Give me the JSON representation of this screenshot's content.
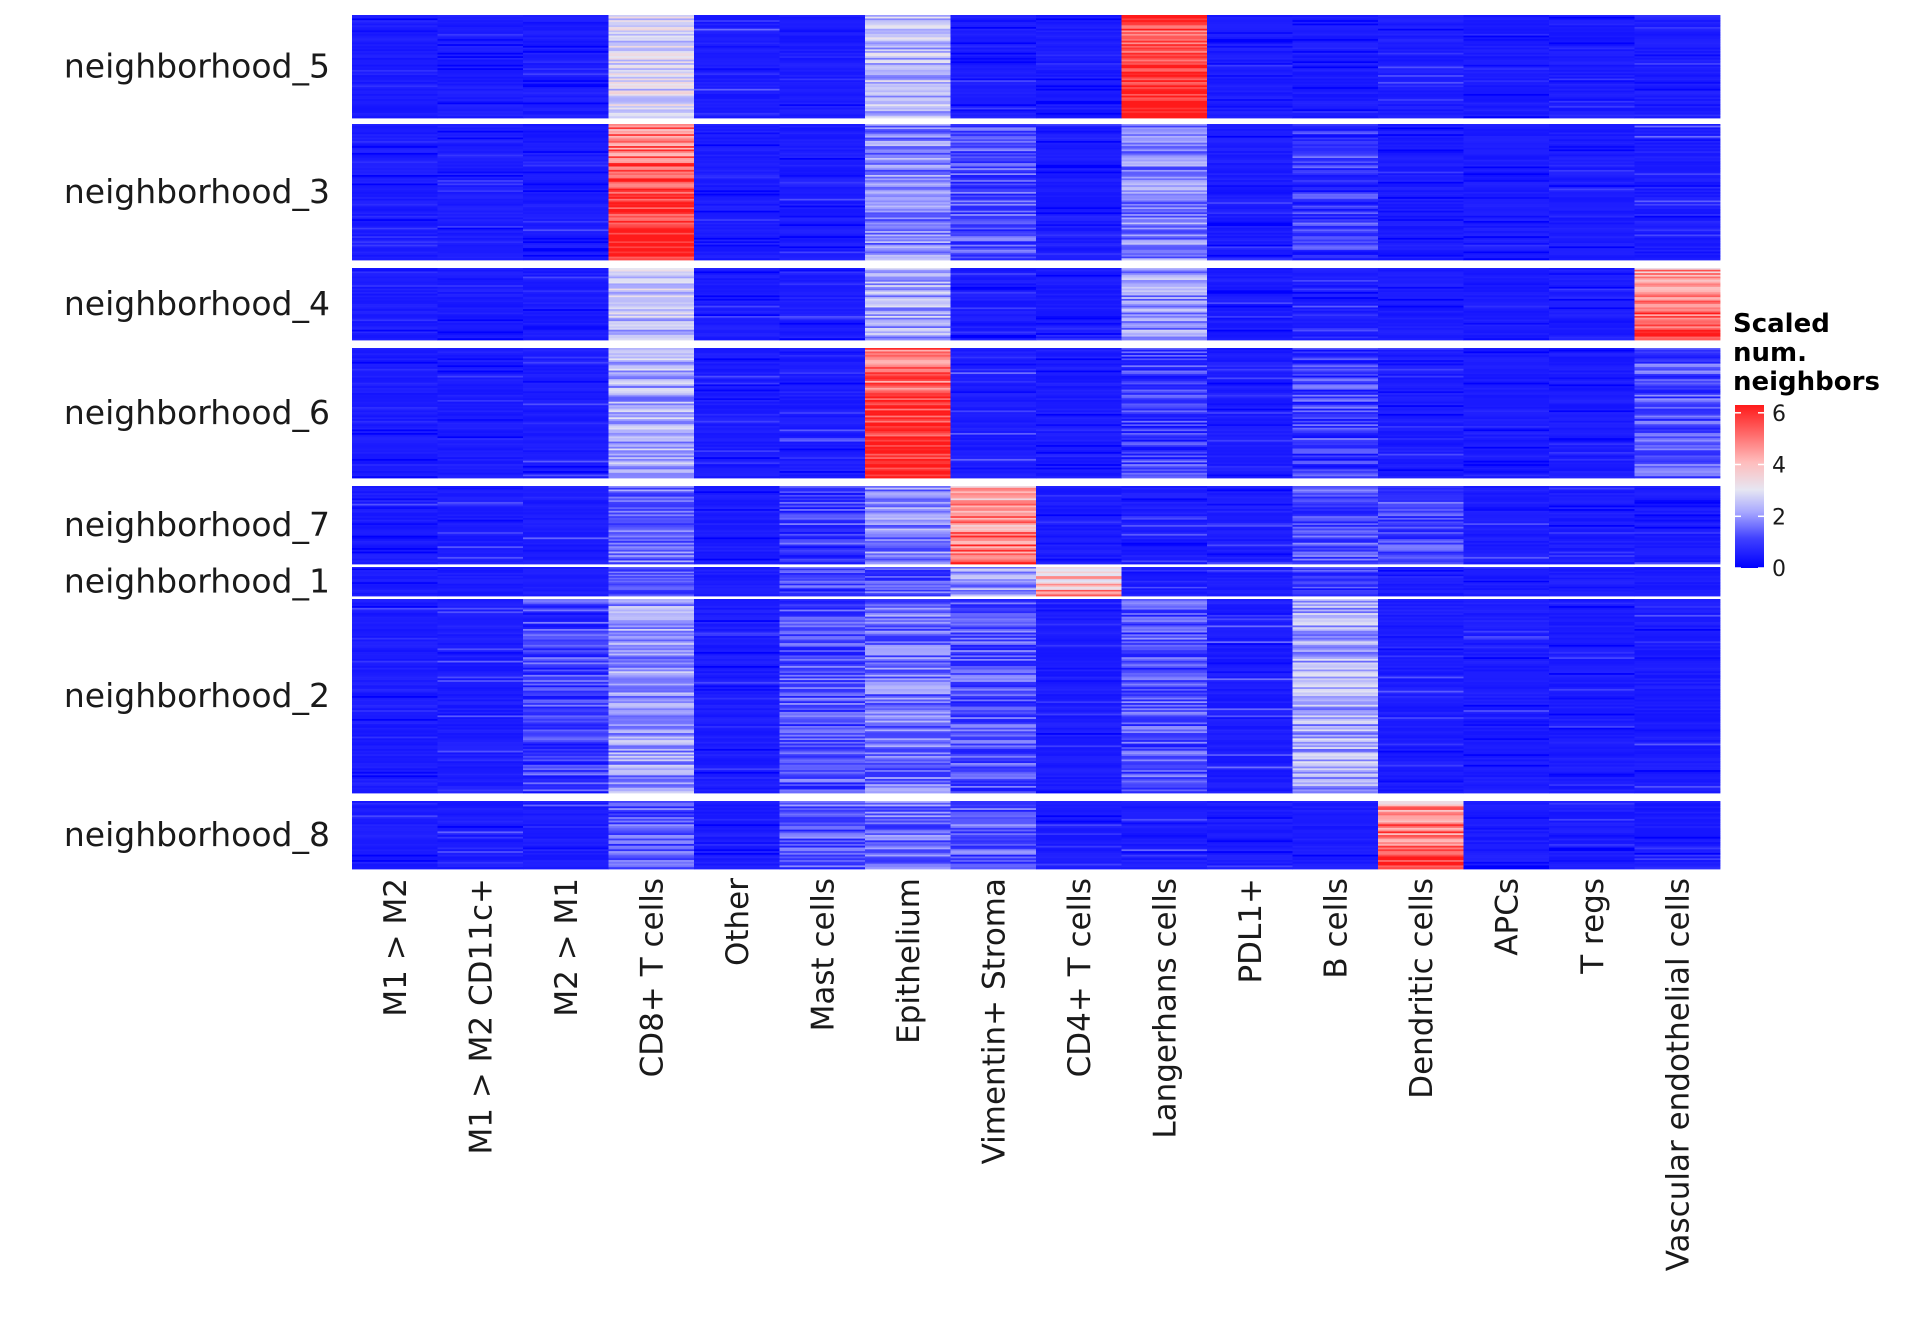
{
  "chart_data": {
    "type": "heatmap",
    "title": "",
    "xlabel": "",
    "ylabel": "",
    "columns": [
      "M1 > M2",
      "M1 > M2 CD11c+",
      "M2 > M1",
      "CD8+ T cells",
      "Other",
      "Mast cells",
      "Epithelium",
      "Vimentin+ Stroma",
      "CD4+ T cells",
      "Langerhans cells",
      "PDL1+",
      "B cells",
      "Dendritic cells",
      "APCs",
      "T regs",
      "Vascular endothelial cells"
    ],
    "row_groups": [
      {
        "name": "neighborhood_5",
        "n_rows": 60,
        "mean": [
          0.4,
          0.3,
          0.4,
          2.8,
          0.8,
          0.5,
          2.4,
          0.5,
          0.3,
          5.8,
          0.4,
          0.4,
          0.6,
          0.3,
          0.3,
          0.8
        ]
      },
      {
        "name": "neighborhood_3",
        "n_rows": 80,
        "mean": [
          0.3,
          0.5,
          0.6,
          5.5,
          0.4,
          0.5,
          1.8,
          1.2,
          0.4,
          1.8,
          0.4,
          1.0,
          0.3,
          0.3,
          0.4,
          0.8
        ]
      },
      {
        "name": "neighborhood_4",
        "n_rows": 42,
        "mean": [
          0.3,
          0.4,
          0.4,
          2.5,
          0.5,
          0.5,
          2.2,
          0.6,
          0.3,
          2.0,
          0.5,
          0.7,
          0.3,
          0.3,
          0.3,
          5.0
        ]
      },
      {
        "name": "neighborhood_6",
        "n_rows": 75,
        "mean": [
          0.3,
          0.4,
          0.6,
          2.2,
          0.5,
          0.7,
          5.5,
          0.9,
          0.3,
          1.0,
          0.5,
          1.0,
          0.5,
          0.3,
          0.3,
          1.2
        ]
      },
      {
        "name": "neighborhood_7",
        "n_rows": 44,
        "mean": [
          0.5,
          0.8,
          0.8,
          1.5,
          0.3,
          1.0,
          1.8,
          4.6,
          0.4,
          0.8,
          0.6,
          1.2,
          1.2,
          0.8,
          0.3,
          0.5
        ]
      },
      {
        "name": "neighborhood_1",
        "n_rows": 19,
        "mean": [
          0.5,
          0.6,
          0.7,
          1.5,
          0.3,
          1.1,
          1.3,
          2.0,
          3.8,
          0.6,
          0.6,
          1.0,
          0.6,
          0.6,
          0.3,
          0.4
        ]
      },
      {
        "name": "neighborhood_2",
        "n_rows": 110,
        "mean": [
          0.6,
          0.7,
          1.0,
          2.0,
          0.5,
          1.2,
          1.6,
          1.2,
          0.5,
          1.2,
          0.8,
          2.2,
          0.8,
          0.6,
          0.5,
          0.6
        ]
      },
      {
        "name": "neighborhood_8",
        "n_rows": 38,
        "mean": [
          0.6,
          0.7,
          0.9,
          1.2,
          0.5,
          1.3,
          1.5,
          1.3,
          0.4,
          0.8,
          0.7,
          0.4,
          5.0,
          0.4,
          0.6,
          0.5
        ]
      }
    ],
    "color_scale": {
      "min": 0,
      "max": 6.3,
      "low": "#0000ff",
      "mid": "#e8e8ee",
      "high": "#ff2a2a",
      "midpoint": 3
    },
    "legend": {
      "title_lines": [
        "Scaled",
        "num.",
        "neighbors"
      ],
      "ticks": [
        0,
        2,
        4,
        6
      ],
      "position": "right"
    },
    "grid": false
  }
}
